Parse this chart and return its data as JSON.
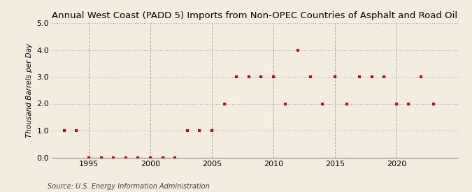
{
  "title": "Annual West Coast (PADD 5) Imports from Non-OPEC Countries of Asphalt and Road Oil",
  "ylabel": "Thousand Barrels per Day",
  "source": "Source: U.S. Energy Information Administration",
  "background_color": "#f3ede0",
  "plot_bg_color": "#f3ede0",
  "years": [
    1993,
    1994,
    1995,
    1996,
    1997,
    1998,
    1999,
    2000,
    2001,
    2002,
    2003,
    2004,
    2005,
    2006,
    2007,
    2008,
    2009,
    2010,
    2011,
    2012,
    2013,
    2014,
    2015,
    2016,
    2017,
    2018,
    2019,
    2020,
    2021,
    2022,
    2023
  ],
  "values": [
    1.0,
    1.0,
    0.0,
    0.0,
    0.0,
    0.0,
    0.0,
    0.0,
    0.0,
    0.0,
    1.0,
    1.0,
    1.0,
    2.0,
    3.0,
    3.0,
    3.0,
    3.0,
    2.0,
    4.0,
    3.0,
    2.0,
    3.0,
    2.0,
    3.0,
    3.0,
    3.0,
    2.0,
    2.0,
    3.0,
    2.0
  ],
  "ylim": [
    0.0,
    5.0
  ],
  "yticks": [
    0.0,
    1.0,
    2.0,
    3.0,
    4.0,
    5.0
  ],
  "xticks": [
    1995,
    2000,
    2005,
    2010,
    2015,
    2020
  ],
  "xlim": [
    1992.0,
    2025.0
  ],
  "marker_color": "#cc0000",
  "marker": "s",
  "marker_size": 3.0,
  "grid_color": "#aaaaaa",
  "grid_style": ":",
  "vgrid_color": "#aaaaaa",
  "vgrid_style": "--",
  "title_fontsize": 9.5,
  "ylabel_fontsize": 7.5,
  "tick_fontsize": 8,
  "source_fontsize": 7
}
